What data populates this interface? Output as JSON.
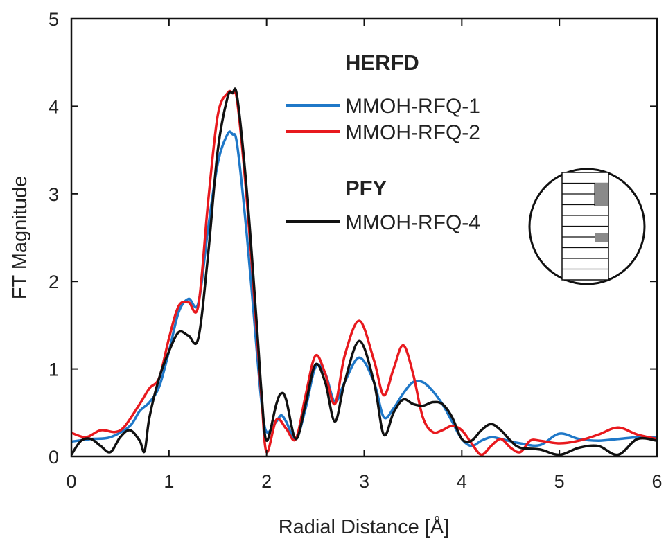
{
  "chart_data": {
    "type": "line",
    "title": "",
    "xlabel": "Radial Distance [Å]",
    "ylabel": "FT Magnitude",
    "xlim": [
      0,
      6
    ],
    "ylim": [
      0,
      5
    ],
    "xticks": [
      "0",
      "1",
      "2",
      "3",
      "4",
      "5",
      "6"
    ],
    "yticks": [
      "0",
      "1",
      "2",
      "3",
      "4",
      "5"
    ],
    "grid": false,
    "legend_position": "top-right",
    "legend_groups": [
      {
        "heading": "HERFD",
        "entries": [
          "MMOH-RFQ-1",
          "MMOH-RFQ-2"
        ]
      },
      {
        "heading": "PFY",
        "entries": [
          "MMOH-RFQ-4"
        ]
      }
    ],
    "series": [
      {
        "name": "MMOH-RFQ-1",
        "color": "#1f78c8",
        "x": [
          0,
          0.2,
          0.4,
          0.6,
          0.7,
          0.8,
          0.9,
          1.0,
          1.1,
          1.2,
          1.3,
          1.4,
          1.5,
          1.6,
          1.65,
          1.7,
          1.8,
          1.9,
          1.95,
          2.0,
          2.1,
          2.15,
          2.2,
          2.3,
          2.4,
          2.5,
          2.6,
          2.7,
          2.8,
          2.95,
          3.1,
          3.2,
          3.3,
          3.4,
          3.5,
          3.6,
          3.7,
          3.8,
          3.9,
          4.0,
          4.1,
          4.2,
          4.3,
          4.4,
          4.6,
          4.8,
          5.0,
          5.2,
          5.4,
          5.6,
          5.8,
          6.0
        ],
        "y": [
          0.17,
          0.2,
          0.22,
          0.35,
          0.52,
          0.62,
          0.8,
          1.2,
          1.65,
          1.8,
          1.75,
          2.6,
          3.35,
          3.68,
          3.68,
          3.55,
          2.5,
          1.2,
          0.6,
          0.28,
          0.4,
          0.47,
          0.4,
          0.2,
          0.55,
          1.02,
          0.95,
          0.62,
          0.85,
          1.13,
          0.85,
          0.45,
          0.55,
          0.72,
          0.85,
          0.85,
          0.75,
          0.6,
          0.4,
          0.2,
          0.12,
          0.18,
          0.22,
          0.2,
          0.15,
          0.13,
          0.26,
          0.2,
          0.18,
          0.2,
          0.22,
          0.22
        ]
      },
      {
        "name": "MMOH-RFQ-2",
        "color": "#e8191e",
        "x": [
          0,
          0.15,
          0.3,
          0.45,
          0.55,
          0.7,
          0.8,
          0.9,
          1.0,
          1.1,
          1.2,
          1.3,
          1.4,
          1.5,
          1.6,
          1.65,
          1.7,
          1.8,
          1.9,
          1.95,
          2.0,
          2.1,
          2.2,
          2.3,
          2.4,
          2.5,
          2.6,
          2.7,
          2.8,
          2.95,
          3.1,
          3.2,
          3.3,
          3.4,
          3.5,
          3.6,
          3.7,
          3.8,
          3.9,
          4.0,
          4.1,
          4.2,
          4.3,
          4.4,
          4.5,
          4.6,
          4.7,
          4.8,
          5.0,
          5.2,
          5.4,
          5.6,
          5.8,
          6.0
        ],
        "y": [
          0.27,
          0.22,
          0.3,
          0.28,
          0.35,
          0.6,
          0.78,
          0.9,
          1.35,
          1.72,
          1.76,
          1.72,
          2.9,
          3.9,
          4.15,
          4.15,
          4.05,
          2.9,
          1.4,
          0.65,
          0.05,
          0.42,
          0.32,
          0.2,
          0.7,
          1.15,
          0.95,
          0.6,
          1.15,
          1.55,
          1.1,
          0.7,
          1.0,
          1.27,
          0.95,
          0.45,
          0.28,
          0.3,
          0.35,
          0.3,
          0.15,
          0.02,
          0.12,
          0.2,
          0.1,
          0.05,
          0.18,
          0.18,
          0.15,
          0.18,
          0.25,
          0.33,
          0.25,
          0.2
        ]
      },
      {
        "name": "MMOH-RFQ-4",
        "color": "#111111",
        "x": [
          0,
          0.1,
          0.2,
          0.3,
          0.4,
          0.5,
          0.6,
          0.7,
          0.75,
          0.8,
          0.9,
          1.0,
          1.1,
          1.2,
          1.3,
          1.4,
          1.5,
          1.6,
          1.65,
          1.7,
          1.8,
          1.9,
          1.95,
          2.0,
          2.1,
          2.15,
          2.2,
          2.3,
          2.4,
          2.5,
          2.6,
          2.7,
          2.8,
          2.95,
          3.1,
          3.2,
          3.3,
          3.4,
          3.5,
          3.6,
          3.7,
          3.8,
          3.9,
          4.0,
          4.1,
          4.2,
          4.3,
          4.4,
          4.5,
          4.6,
          4.8,
          5.0,
          5.2,
          5.4,
          5.6,
          5.8,
          6.0
        ],
        "y": [
          0.02,
          0.18,
          0.2,
          0.12,
          0.05,
          0.22,
          0.3,
          0.18,
          0.06,
          0.45,
          0.9,
          1.2,
          1.42,
          1.38,
          1.35,
          2.3,
          3.5,
          4.1,
          4.15,
          4.1,
          3.0,
          1.5,
          0.7,
          0.18,
          0.6,
          0.72,
          0.65,
          0.2,
          0.6,
          1.05,
          0.85,
          0.4,
          0.85,
          1.32,
          0.85,
          0.25,
          0.5,
          0.65,
          0.6,
          0.58,
          0.62,
          0.6,
          0.45,
          0.2,
          0.18,
          0.3,
          0.37,
          0.3,
          0.18,
          0.1,
          0.08,
          0.02,
          0.1,
          0.12,
          0.02,
          0.2,
          0.18
        ]
      }
    ]
  }
}
